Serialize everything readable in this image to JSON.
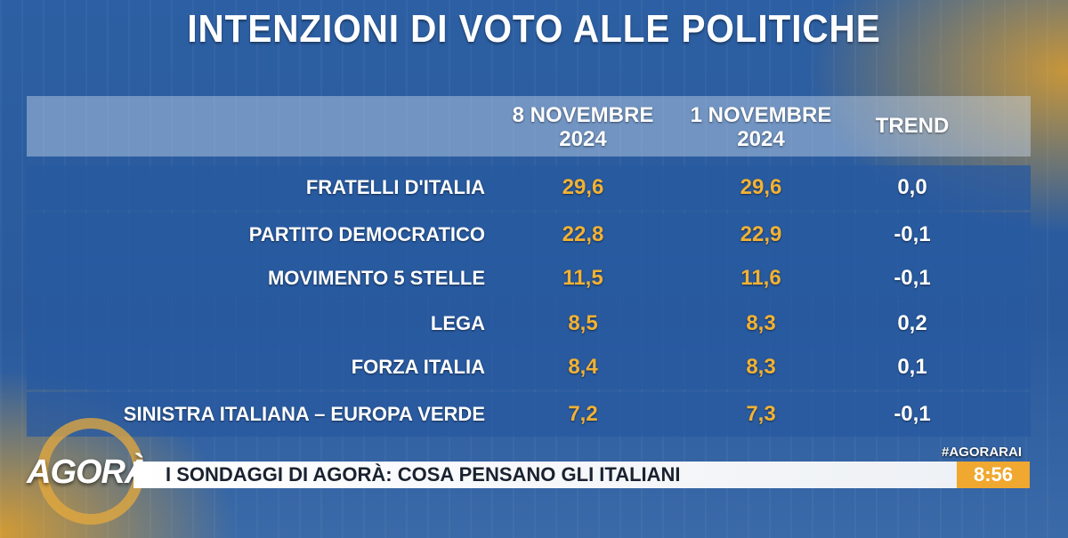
{
  "header": {
    "title": "INTENZIONI DI VOTO ALLE POLITICHE"
  },
  "table": {
    "columns": [
      "8 NOVEMBRE 2024",
      "1 NOVEMBRE 2024",
      "TREND"
    ],
    "rows": [
      [
        "FRATELLI D'ITALIA",
        "29,6",
        "29,6",
        "0,0"
      ],
      [
        "PARTITO DEMOCRATICO",
        "22,8",
        "22,9",
        "-0,1"
      ],
      [
        "MOVIMENTO 5 STELLE",
        "11,5",
        "11,6",
        "-0,1"
      ],
      [
        "LEGA",
        "8,5",
        "8,3",
        "0,2"
      ],
      [
        "FORZA ITALIA",
        "8,4",
        "8,3",
        "0,1"
      ],
      [
        "SINISTRA ITALIANA – EUROPA VERDE",
        "7,2",
        "7,3",
        "-0,1"
      ]
    ]
  },
  "ticker": {
    "logo": "AGORÀ",
    "headline": "I SONDAGGI DI AGORÀ: COSA PENSANO GLI ITALIANI",
    "hashtag": "#AGORARAI",
    "clock": "8:56"
  }
}
